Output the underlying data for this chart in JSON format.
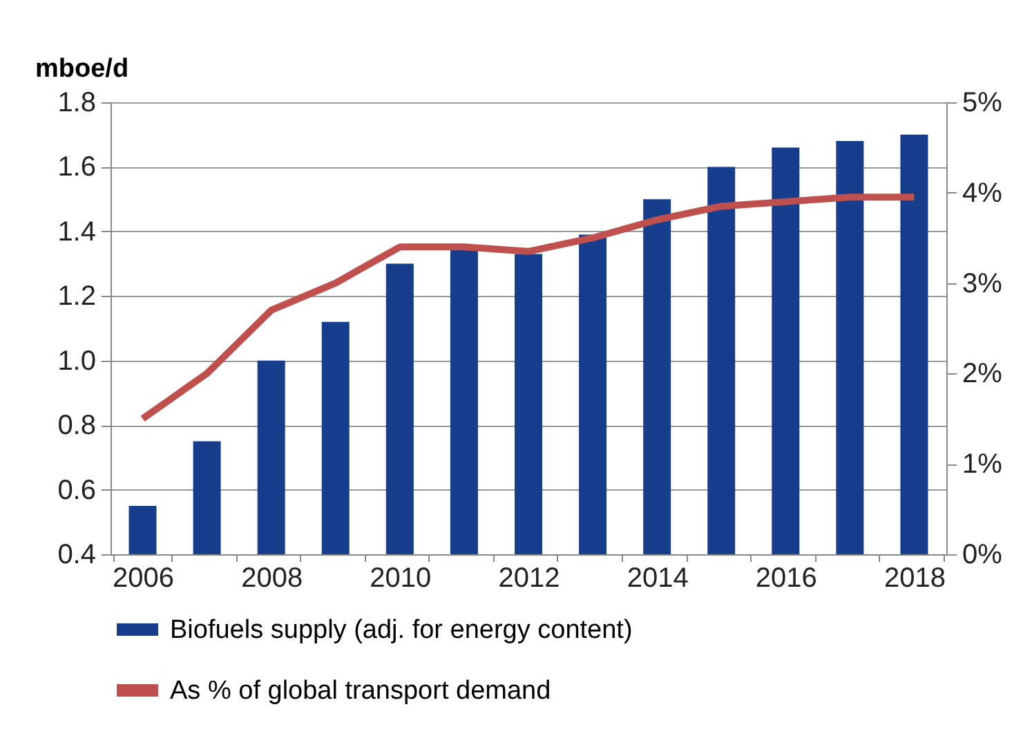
{
  "chart_data": {
    "type": "bar",
    "ylabel": "mboe/d",
    "categories": [
      "2006",
      null,
      "2008",
      null,
      "2010",
      null,
      "2012",
      null,
      "2014",
      null,
      "2016",
      null,
      "2018"
    ],
    "series": [
      {
        "name": "Biofuels supply (adj. for energy content)",
        "color": "#173e8c",
        "values": [
          0.55,
          0.75,
          1.0,
          1.12,
          1.3,
          1.35,
          1.33,
          1.39,
          1.5,
          1.6,
          1.66,
          1.68,
          1.7
        ]
      },
      {
        "name": "As % of global transport demand",
        "type": "line",
        "axis": "y2",
        "color": "#c0504d",
        "values": [
          1.5,
          2.0,
          2.7,
          3.0,
          3.4,
          3.4,
          3.35,
          3.5,
          3.7,
          3.85,
          3.9,
          3.95,
          3.95
        ]
      }
    ],
    "ylim": [
      0.4,
      1.8
    ],
    "yticks": [
      {
        "value": 0.4,
        "label": "0.4"
      },
      {
        "value": 0.6,
        "label": "0.6"
      },
      {
        "value": 0.8,
        "label": "0.8"
      },
      {
        "value": 1.0,
        "label": "1.0"
      },
      {
        "value": 1.2,
        "label": "1.2"
      },
      {
        "value": 1.4,
        "label": "1.4"
      },
      {
        "value": 1.6,
        "label": "1.6"
      },
      {
        "value": 1.8,
        "label": "1.8"
      }
    ],
    "y2lim": [
      0,
      5
    ],
    "y2ticks": [
      {
        "value": 0,
        "label": "0%"
      },
      {
        "value": 1,
        "label": "1%"
      },
      {
        "value": 2,
        "label": "2%"
      },
      {
        "value": 3,
        "label": "3%"
      },
      {
        "value": 4,
        "label": "4%"
      },
      {
        "value": 5,
        "label": "5%"
      }
    ],
    "grid": "y",
    "legend": "bottom"
  }
}
